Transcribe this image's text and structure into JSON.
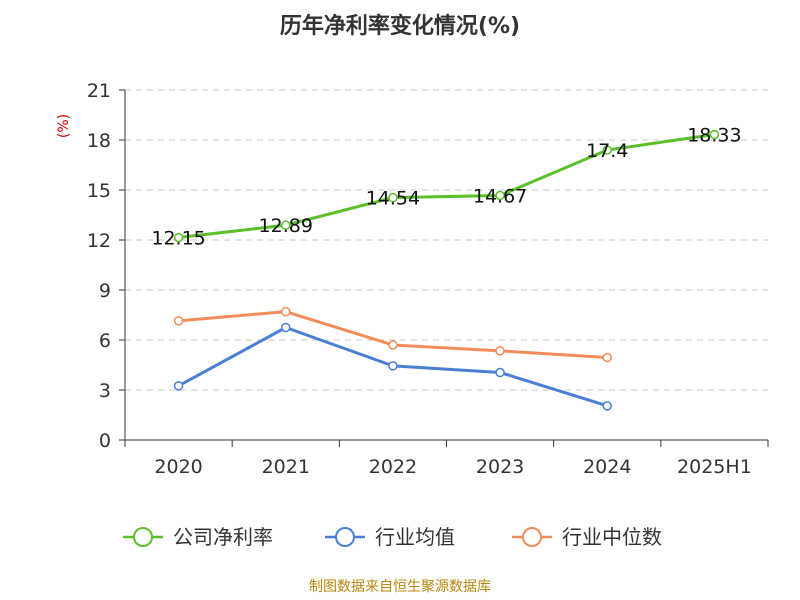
{
  "chart_data": {
    "type": "line",
    "title": "历年净利率变化情况(%)",
    "unit_label": "(%)",
    "categories": [
      "2020",
      "2021",
      "2022",
      "2023",
      "2024",
      "2025H1"
    ],
    "ylim": [
      0,
      21
    ],
    "yticks": [
      "0",
      "3",
      "6",
      "9",
      "12",
      "15",
      "18",
      "21"
    ],
    "grid": "horizontal-dashed",
    "legend_position": "bottom",
    "series": [
      {
        "name": "公司净利率",
        "color": "#5cbf2a",
        "values": [
          12.15,
          12.89,
          14.54,
          14.67,
          17.4,
          18.33
        ],
        "labels": [
          "12.15",
          "12.89",
          "14.54",
          "14.67",
          "17.4",
          "18.33"
        ]
      },
      {
        "name": "行业均值",
        "color": "#4a7fd6",
        "values": [
          3.25,
          6.75,
          4.45,
          4.05,
          2.05,
          null
        ]
      },
      {
        "name": "行业中位数",
        "color": "#f28c5a",
        "values": [
          7.15,
          7.7,
          5.7,
          5.35,
          4.95,
          null
        ]
      }
    ]
  },
  "footer": {
    "source": "制图数据来自恒生聚源数据库"
  }
}
